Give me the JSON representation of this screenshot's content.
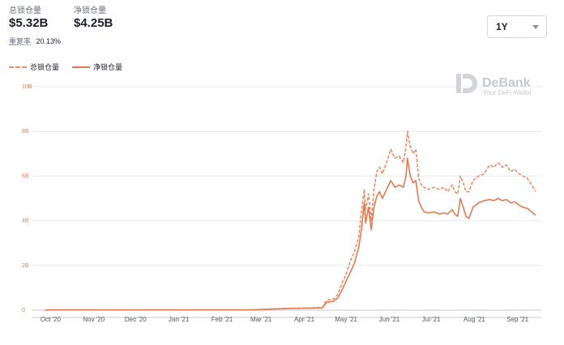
{
  "stats": {
    "tvl_label": "总锁仓量",
    "tvl_value": "$5.32B",
    "net_label": "净锁仓量",
    "net_value": "$4.25B",
    "ratio_label": "重复率",
    "ratio_value": "20.13%"
  },
  "range_select": {
    "value": "1Y"
  },
  "watermark": {
    "title": "DeBank",
    "subtitle": "Your DeFi Wallet",
    "icon": "debank-logo-icon"
  },
  "colors": {
    "total": "#ed8b63",
    "net": "#e07a52",
    "grid": "#e8e9ee",
    "axis": "#c8cad2"
  },
  "chart_data": {
    "type": "line",
    "ylim": [
      0,
      10
    ],
    "y_ticks": [
      {
        "value": 0,
        "label": "0"
      },
      {
        "value": 2,
        "label": "2B"
      },
      {
        "value": 4,
        "label": "4B"
      },
      {
        "value": 6,
        "label": "6B"
      },
      {
        "value": 8,
        "label": "8B"
      },
      {
        "value": 10,
        "label": "10B"
      }
    ],
    "x_ticks": [
      {
        "date": "2020-10-01",
        "label": "Oct '20"
      },
      {
        "date": "2020-11-01",
        "label": "Nov '20"
      },
      {
        "date": "2020-12-01",
        "label": "Dec '20"
      },
      {
        "date": "2021-01-01",
        "label": "Jan '21"
      },
      {
        "date": "2021-02-01",
        "label": "Feb '21"
      },
      {
        "date": "2021-03-01",
        "label": "Mar '21"
      },
      {
        "date": "2021-04-01",
        "label": "Apr '21"
      },
      {
        "date": "2021-05-01",
        "label": "May '21"
      },
      {
        "date": "2021-06-01",
        "label": "Jun '21"
      },
      {
        "date": "2021-07-01",
        "label": "Jul '21"
      },
      {
        "date": "2021-08-01",
        "label": "Aug '21"
      },
      {
        "date": "2021-09-01",
        "label": "Sep '21"
      }
    ],
    "xlim": [
      "2020-09-18",
      "2021-09-18"
    ],
    "series": [
      {
        "name": "总锁仓量",
        "style": "dashed",
        "points": [
          [
            "2020-09-27",
            0.01
          ],
          [
            "2020-11-01",
            0.01
          ],
          [
            "2020-12-15",
            0.01
          ],
          [
            "2021-01-20",
            0.01
          ],
          [
            "2021-02-20",
            0.01
          ],
          [
            "2021-03-01",
            0.03
          ],
          [
            "2021-03-10",
            0.06
          ],
          [
            "2021-03-25",
            0.09
          ],
          [
            "2021-04-05",
            0.1
          ],
          [
            "2021-04-14",
            0.12
          ],
          [
            "2021-04-17",
            0.45
          ],
          [
            "2021-04-22",
            0.5
          ],
          [
            "2021-04-25",
            0.7
          ],
          [
            "2021-04-28",
            1.2
          ],
          [
            "2021-05-01",
            1.6
          ],
          [
            "2021-05-04",
            2.2
          ],
          [
            "2021-05-07",
            2.6
          ],
          [
            "2021-05-10",
            3.3
          ],
          [
            "2021-05-12",
            4.4
          ],
          [
            "2021-05-14",
            5.4
          ],
          [
            "2021-05-15",
            4.5
          ],
          [
            "2021-05-17",
            5.2
          ],
          [
            "2021-05-19",
            4.0
          ],
          [
            "2021-05-21",
            5.4
          ],
          [
            "2021-05-23",
            6.2
          ],
          [
            "2021-05-25",
            6.4
          ],
          [
            "2021-05-27",
            6.1
          ],
          [
            "2021-05-30",
            6.6
          ],
          [
            "2021-06-02",
            7.2
          ],
          [
            "2021-06-05",
            6.8
          ],
          [
            "2021-06-08",
            6.9
          ],
          [
            "2021-06-11",
            6.6
          ],
          [
            "2021-06-13",
            7.3
          ],
          [
            "2021-06-14",
            8.0
          ],
          [
            "2021-06-16",
            7.3
          ],
          [
            "2021-06-18",
            7.0
          ],
          [
            "2021-06-20",
            7.2
          ],
          [
            "2021-06-22",
            5.9
          ],
          [
            "2021-06-24",
            5.6
          ],
          [
            "2021-06-26",
            5.5
          ],
          [
            "2021-06-29",
            5.4
          ],
          [
            "2021-07-03",
            5.5
          ],
          [
            "2021-07-07",
            5.4
          ],
          [
            "2021-07-10",
            5.5
          ],
          [
            "2021-07-13",
            5.3
          ],
          [
            "2021-07-16",
            5.6
          ],
          [
            "2021-07-18",
            5.3
          ],
          [
            "2021-07-20",
            5.2
          ],
          [
            "2021-07-22",
            6.0
          ],
          [
            "2021-07-24",
            5.7
          ],
          [
            "2021-07-26",
            5.3
          ],
          [
            "2021-07-28",
            5.3
          ],
          [
            "2021-07-31",
            5.8
          ],
          [
            "2021-08-04",
            6.0
          ],
          [
            "2021-08-08",
            6.1
          ],
          [
            "2021-08-12",
            6.5
          ],
          [
            "2021-08-15",
            6.4
          ],
          [
            "2021-08-18",
            6.6
          ],
          [
            "2021-08-21",
            6.4
          ],
          [
            "2021-08-24",
            6.5
          ],
          [
            "2021-08-27",
            6.2
          ],
          [
            "2021-08-30",
            6.3
          ],
          [
            "2021-09-02",
            6.1
          ],
          [
            "2021-09-05",
            6.0
          ],
          [
            "2021-09-08",
            5.9
          ],
          [
            "2021-09-11",
            5.6
          ],
          [
            "2021-09-14",
            5.32
          ]
        ]
      },
      {
        "name": "净锁仓量",
        "style": "solid",
        "points": [
          [
            "2020-09-27",
            0.01
          ],
          [
            "2020-11-01",
            0.01
          ],
          [
            "2020-12-15",
            0.01
          ],
          [
            "2021-01-20",
            0.01
          ],
          [
            "2021-02-20",
            0.01
          ],
          [
            "2021-03-01",
            0.03
          ],
          [
            "2021-03-10",
            0.05
          ],
          [
            "2021-03-25",
            0.08
          ],
          [
            "2021-04-05",
            0.09
          ],
          [
            "2021-04-14",
            0.1
          ],
          [
            "2021-04-17",
            0.35
          ],
          [
            "2021-04-22",
            0.4
          ],
          [
            "2021-04-25",
            0.55
          ],
          [
            "2021-04-28",
            0.9
          ],
          [
            "2021-05-01",
            1.3
          ],
          [
            "2021-05-04",
            1.7
          ],
          [
            "2021-05-07",
            2.1
          ],
          [
            "2021-05-10",
            2.8
          ],
          [
            "2021-05-12",
            3.6
          ],
          [
            "2021-05-14",
            4.8
          ],
          [
            "2021-05-15",
            3.9
          ],
          [
            "2021-05-17",
            4.6
          ],
          [
            "2021-05-19",
            3.6
          ],
          [
            "2021-05-21",
            4.6
          ],
          [
            "2021-05-23",
            5.1
          ],
          [
            "2021-05-25",
            5.3
          ],
          [
            "2021-05-27",
            5.0
          ],
          [
            "2021-05-30",
            5.4
          ],
          [
            "2021-06-02",
            5.8
          ],
          [
            "2021-06-05",
            5.5
          ],
          [
            "2021-06-08",
            5.6
          ],
          [
            "2021-06-11",
            5.5
          ],
          [
            "2021-06-13",
            6.0
          ],
          [
            "2021-06-14",
            6.8
          ],
          [
            "2021-06-16",
            6.0
          ],
          [
            "2021-06-18",
            5.7
          ],
          [
            "2021-06-20",
            5.8
          ],
          [
            "2021-06-22",
            4.9
          ],
          [
            "2021-06-24",
            4.6
          ],
          [
            "2021-06-26",
            4.4
          ],
          [
            "2021-06-29",
            4.35
          ],
          [
            "2021-07-03",
            4.4
          ],
          [
            "2021-07-07",
            4.3
          ],
          [
            "2021-07-10",
            4.35
          ],
          [
            "2021-07-13",
            4.3
          ],
          [
            "2021-07-16",
            4.5
          ],
          [
            "2021-07-18",
            4.3
          ],
          [
            "2021-07-20",
            4.2
          ],
          [
            "2021-07-22",
            5.0
          ],
          [
            "2021-07-24",
            4.6
          ],
          [
            "2021-07-26",
            4.2
          ],
          [
            "2021-07-28",
            4.1
          ],
          [
            "2021-07-31",
            4.6
          ],
          [
            "2021-08-04",
            4.8
          ],
          [
            "2021-08-08",
            4.9
          ],
          [
            "2021-08-12",
            4.95
          ],
          [
            "2021-08-15",
            4.9
          ],
          [
            "2021-08-18",
            5.0
          ],
          [
            "2021-08-21",
            4.9
          ],
          [
            "2021-08-24",
            4.95
          ],
          [
            "2021-08-27",
            4.8
          ],
          [
            "2021-08-30",
            4.85
          ],
          [
            "2021-09-02",
            4.7
          ],
          [
            "2021-09-05",
            4.6
          ],
          [
            "2021-09-08",
            4.55
          ],
          [
            "2021-09-11",
            4.4
          ],
          [
            "2021-09-14",
            4.25
          ]
        ]
      }
    ]
  }
}
